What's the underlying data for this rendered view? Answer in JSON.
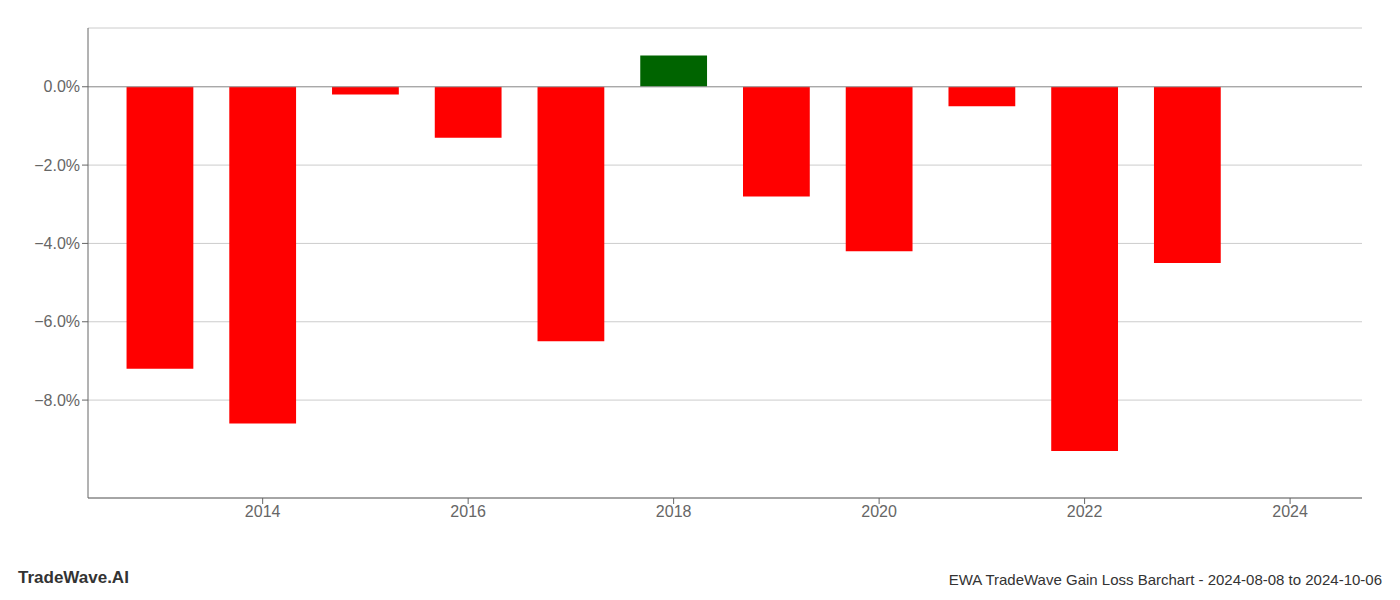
{
  "chart_data": {
    "type": "bar",
    "title": "EWA TradeWave Gain Loss Barchart - 2024-08-08 to 2024-10-06",
    "annotations": [
      "TradeWave.AI"
    ],
    "x": [
      2013,
      2014,
      2015,
      2016,
      2017,
      2018,
      2019,
      2020,
      2021,
      2022,
      2023
    ],
    "values": [
      -7.2,
      -8.6,
      -0.2,
      -1.3,
      -6.5,
      0.8,
      -2.8,
      -4.2,
      -0.5,
      -9.3,
      -4.5
    ],
    "colors": [
      "#ff0000",
      "#ff0000",
      "#ff0000",
      "#ff0000",
      "#ff0000",
      "#006400",
      "#ff0000",
      "#ff0000",
      "#ff0000",
      "#ff0000",
      "#ff0000"
    ],
    "xlim": [
      2012.3,
      2024.7
    ],
    "xticks": [
      2014,
      2016,
      2018,
      2020,
      2022,
      2024
    ],
    "ylim": [
      -10.5,
      1.5
    ],
    "yticks": [
      {
        "value": 0.0,
        "label": "0.0%"
      },
      {
        "value": -2.0,
        "label": "−2.0%"
      },
      {
        "value": -4.0,
        "label": "−4.0%"
      },
      {
        "value": -6.0,
        "label": "−6.0%"
      },
      {
        "value": -8.0,
        "label": "−8.0%"
      }
    ],
    "grid": true
  }
}
